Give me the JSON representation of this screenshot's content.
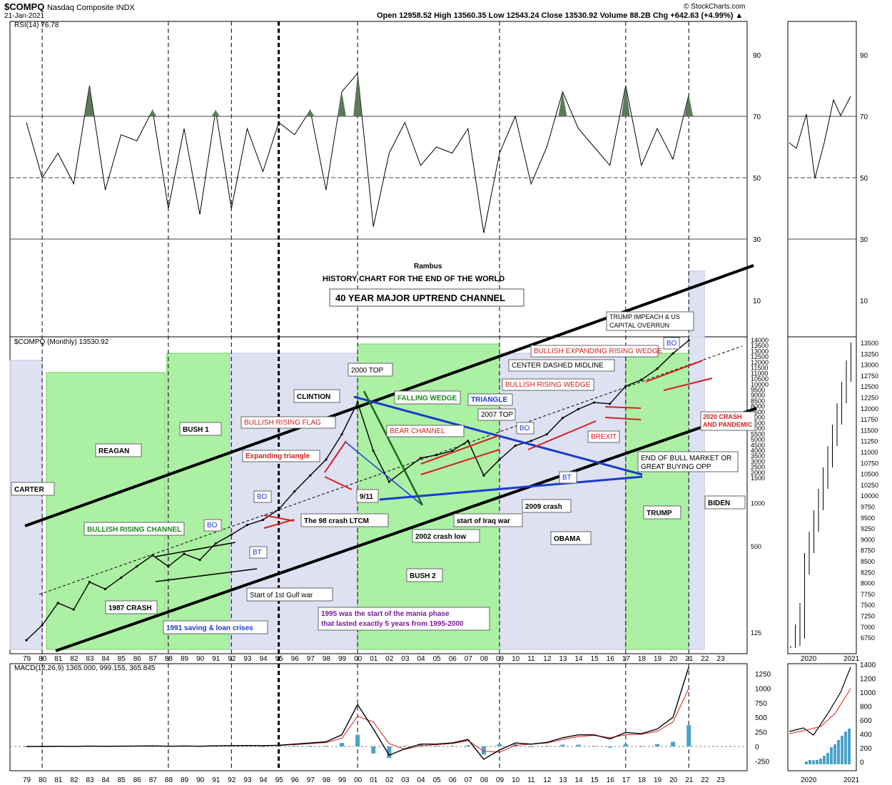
{
  "header": {
    "symbol": "$COMPQ",
    "name": "Nasdaq Composite INDX",
    "date": "21-Jan-2021",
    "quote": "Open 12958.52  High 13560.35  Low 12543.24  Close 13530.92  Volume 88.2B  Chg +642.63 (+4.99%) ▲",
    "brand": "© StockCharts.com"
  },
  "chart_data": [
    {
      "type": "line",
      "panel": "rsi",
      "legend": "RSI(14) 76.78",
      "ylim": [
        0,
        100
      ],
      "yticks": [
        90,
        70,
        50,
        30,
        10
      ],
      "reference_lines": [
        70,
        50,
        30
      ],
      "x": [
        1979,
        1980,
        1981,
        1982,
        1983,
        1984,
        1985,
        1986,
        1987,
        1988,
        1989,
        1990,
        1991,
        1992,
        1993,
        1994,
        1995,
        1996,
        1997,
        1998,
        1999,
        2000,
        2001,
        2002,
        2003,
        2004,
        2005,
        2006,
        2007,
        2008,
        2009,
        2010,
        2011,
        2012,
        2013,
        2014,
        2015,
        2016,
        2017,
        2018,
        2019,
        2020,
        2021
      ],
      "values": [
        68,
        50,
        58,
        48,
        80,
        46,
        64,
        62,
        72,
        40,
        66,
        38,
        72,
        40,
        66,
        52,
        68,
        64,
        72,
        46,
        78,
        84,
        34,
        58,
        68,
        54,
        60,
        58,
        66,
        32,
        58,
        70,
        48,
        60,
        78,
        66,
        60,
        54,
        80,
        54,
        66,
        56,
        77
      ]
    },
    {
      "type": "line",
      "panel": "price",
      "legend": "$COMPQ (Monthly) 13530.92",
      "scale": "log",
      "yticks": [
        125,
        500,
        1000,
        1500,
        2000,
        2500,
        3000,
        3500,
        4000,
        4500,
        5000,
        5500,
        6000,
        6500,
        7000,
        7500,
        8000,
        8500,
        9000,
        9500,
        10000,
        10500,
        11000,
        11500,
        12000,
        12500,
        13000,
        13500,
        14000
      ],
      "xticks": [
        "79",
        "80",
        "81",
        "82",
        "83",
        "84",
        "85",
        "86",
        "87",
        "88",
        "89",
        "90",
        "91",
        "92",
        "93",
        "94",
        "95",
        "96",
        "97",
        "98",
        "99",
        "00",
        "01",
        "02",
        "03",
        "04",
        "05",
        "06",
        "07",
        "08",
        "09",
        "10",
        "11",
        "12",
        "13",
        "14",
        "15",
        "16",
        "17",
        "18",
        "19",
        "20",
        "21",
        "22",
        "23"
      ],
      "x": [
        1979,
        1980,
        1981,
        1982,
        1983,
        1984,
        1985,
        1986,
        1987,
        1988,
        1989,
        1990,
        1991,
        1992,
        1993,
        1994,
        1995,
        1996,
        1997,
        1998,
        1999,
        2000,
        2001,
        2002,
        2003,
        2004,
        2005,
        2006,
        2007,
        2008,
        2009,
        2010,
        2011,
        2012,
        2013,
        2014,
        2015,
        2016,
        2017,
        2018,
        2019,
        2020,
        2021
      ],
      "values": [
        110,
        140,
        200,
        180,
        280,
        250,
        300,
        360,
        430,
        360,
        440,
        400,
        520,
        600,
        700,
        760,
        900,
        1200,
        1550,
        2000,
        3000,
        5000,
        2300,
        1400,
        1700,
        2050,
        2150,
        2300,
        2700,
        1550,
        2000,
        2500,
        2700,
        3000,
        3900,
        4500,
        5000,
        4900,
        6500,
        7200,
        8600,
        11000,
        13530
      ]
    },
    {
      "type": "line",
      "panel": "macd",
      "legend": "MACD(12,26,9) 1365.000, 999.155, 365.845",
      "ylim": [
        -400,
        1400
      ],
      "yticks": [
        1250,
        1000,
        750,
        500,
        250,
        0,
        -250
      ],
      "x": [
        1979,
        1980,
        1981,
        1982,
        1983,
        1984,
        1985,
        1986,
        1987,
        1988,
        1989,
        1990,
        1991,
        1992,
        1993,
        1994,
        1995,
        1996,
        1997,
        1998,
        1999,
        2000,
        2001,
        2002,
        2003,
        2004,
        2005,
        2006,
        2007,
        2008,
        2009,
        2010,
        2011,
        2012,
        2013,
        2014,
        2015,
        2016,
        2017,
        2018,
        2019,
        2020,
        2021
      ],
      "values": [
        0,
        0,
        3,
        1,
        6,
        3,
        5,
        7,
        10,
        4,
        8,
        4,
        12,
        14,
        16,
        14,
        20,
        40,
        60,
        80,
        200,
        720,
        300,
        -150,
        -40,
        40,
        40,
        60,
        120,
        -220,
        -60,
        60,
        40,
        70,
        150,
        200,
        200,
        130,
        240,
        220,
        300,
        500,
        1365
      ],
      "signal": [
        0,
        0,
        2,
        2,
        4,
        4,
        4,
        6,
        8,
        6,
        7,
        5,
        9,
        12,
        14,
        14,
        18,
        30,
        48,
        68,
        140,
        520,
        420,
        50,
        -50,
        10,
        30,
        50,
        100,
        -80,
        -100,
        20,
        40,
        60,
        120,
        170,
        190,
        150,
        200,
        210,
        260,
        420,
        999
      ]
    }
  ],
  "overlay_text": {
    "author": "Rambus",
    "subtitle": "HISTORY CHART FOR THE END OF THE WORLD",
    "main_box": "40 YEAR MAJOR UPTREND CHANNEL",
    "presidents": [
      "CARTER",
      "REAGAN",
      "BUSH 1",
      "CLINTION",
      "BUSH 2",
      "OBAMA",
      "TRUMP",
      "BIDEN"
    ],
    "notes": {
      "trump_impeach_1": "TRUMP IMPEACH & US",
      "trump_impeach_2": "CAPITAL OVERRUN",
      "bo": "BO",
      "bt": "BT",
      "bullish_expanding": "BULLISH EXPANDING RISING WEDGE",
      "center_midline": "CENTER DASHED MIDLINE",
      "bullish_rising_wedge": "BULLISH RISING WEDGE",
      "top_2000": "2000 TOP",
      "falling_wedge": "FALLING WEDGE",
      "triangle": "TRIANGLE",
      "top_2007": "2007 TOP",
      "bullish_rising_flag": "BULLISH RISING FLAG",
      "bear_channel": "BEAR CHANNEL",
      "expanding_triangle": "Expanding triangle",
      "brexit": "BREXIT",
      "crash_2020_1": "2020 CRASH",
      "crash_2020_2": "AND PANDEMIC",
      "end_bull_1": "END OF BULL MARKET OR",
      "end_bull_2": "GREAT BUYING OPP",
      "nine_eleven": "9/11",
      "crash_98": "The 98 crash LTCM",
      "iraq_war": "start of Iraq war",
      "crash_2009": "2009 crash",
      "crash_2002": "2002 crash low",
      "bullish_rising_channel": "BULLISH RISING CHANNEL",
      "gulf_war": "Start of 1st Gulf war",
      "crash_1987": "1987 CRASH",
      "savings_1991": "1991 saving & loan crises",
      "mania_1": "1995 was the start of the mania phase",
      "mania_2": "that lasted exactly 5 years from 1995-2000"
    }
  },
  "side_panel": {
    "rsi_ticks": [
      90,
      70,
      50,
      30,
      10
    ],
    "price_ticks": [
      "13500",
      "13250",
      "13000",
      "12750",
      "12500",
      "12250",
      "12000",
      "11750",
      "11500",
      "11250",
      "11000",
      "10750",
      "10500",
      "10250",
      "10000",
      "9750",
      "9500",
      "9250",
      "9000",
      "8750",
      "8500",
      "8250",
      "8000",
      "7750",
      "7500",
      "7250",
      "7000",
      "6750"
    ],
    "macd_ticks": [
      1400,
      1200,
      1000,
      800,
      600,
      400,
      200,
      0
    ],
    "x_labels": [
      "2020",
      "2021"
    ]
  },
  "colors": {
    "green_band": "#a8f0a0",
    "blue_band": "#dde0f2",
    "rsi_fill": "#5c7a5a",
    "macd_hist": "#4aa3c8",
    "signal": "#d62020",
    "annotation_red": "#d42020",
    "annotation_blue": "#1a3ad0",
    "annotation_green": "#1a8a1a"
  }
}
